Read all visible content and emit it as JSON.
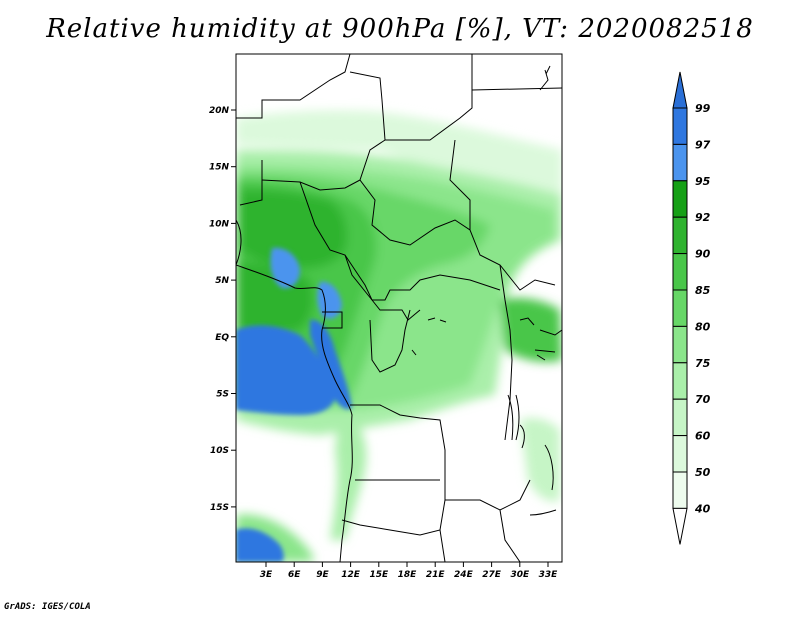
{
  "title": "Relative humidity at 900hPa [%], VT: 2020082518",
  "credit": "GrADS: IGES/COLA",
  "map": {
    "lon_ticks": [
      "3E",
      "6E",
      "9E",
      "12E",
      "15E",
      "18E",
      "21E",
      "24E",
      "27E",
      "30E",
      "33E"
    ],
    "lat_ticks": [
      "20N",
      "15N",
      "10N",
      "5N",
      "EQ",
      "5S",
      "10S",
      "15S"
    ]
  },
  "colorbar": {
    "levels": [
      "99",
      "97",
      "95",
      "92",
      "90",
      "85",
      "80",
      "75",
      "70",
      "60",
      "50",
      "40"
    ],
    "colors": {
      "above_99": "#2a6fd6",
      "97_99": "#2f77e0",
      "95_97": "#4b94ee",
      "92_95": "#16a016",
      "90_92": "#2fb32f",
      "85_90": "#49c649",
      "80_85": "#67d767",
      "75_80": "#8be58b",
      "70_75": "#aaefaa",
      "60_70": "#c6f5c6",
      "50_60": "#dcf9dc",
      "40_50": "#eefcee",
      "below_40": "#ffffff"
    }
  }
}
